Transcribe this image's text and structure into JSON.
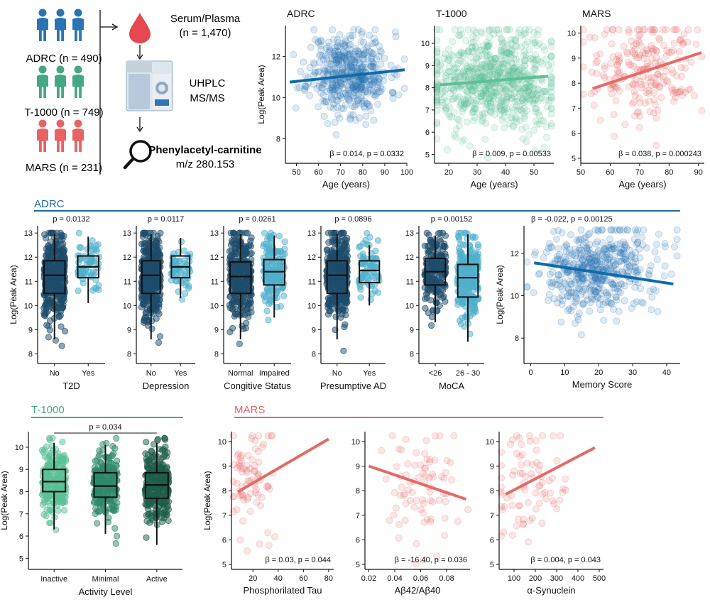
{
  "workflow": {
    "cohorts": [
      {
        "label": "ADRC (n = 490)",
        "color": "#2b74b3"
      },
      {
        "label": "T-1000 (n = 749)",
        "color": "#44a883"
      },
      {
        "label": "MARS (n = 231)",
        "color": "#e76366"
      }
    ],
    "sample_line1": "Serum/Plasma",
    "sample_line2": "(n = 1,470)",
    "method_line1": "UHPLC",
    "method_line2": "MS/MS",
    "compound_name": "Phenylacetyl-carnitine",
    "compound_mz": "m/z 280.153"
  },
  "sections": {
    "adrc": "ADRC",
    "t1000": "T-1000",
    "mars": "MARS"
  },
  "colors": {
    "adrc": "#2b74b3",
    "adrc_line": "#0f6aa8",
    "adrc_dark": "#1e4c6b",
    "adrc_light": "#4fb0cc",
    "t1000": "#44a883",
    "t1000_light": "#5cc096",
    "t1000_mid": "#2e8a6a",
    "t1000_dark": "#1d5e4a",
    "mars": "#e76366",
    "mars_line": "#e46a66"
  },
  "chart_data": [
    {
      "id": "age_adrc",
      "type": "scatter",
      "title": "ADRC",
      "xlabel": "Age (years)",
      "ylabel": "Log(Peak Area)",
      "xlim": [
        45,
        100
      ],
      "ylim": [
        6.8,
        13.5
      ],
      "xticks": [
        50,
        60,
        70,
        80,
        90,
        100
      ],
      "yticks": [
        8,
        10,
        12
      ],
      "n": 490,
      "x_center": 74,
      "x_spread": 9,
      "y_center": 11.2,
      "y_spread": 1.0,
      "fit": {
        "x": [
          47,
          99
        ],
        "y": [
          10.75,
          11.35
        ]
      },
      "annotation": "β = 0.014, p = 0.0332"
    },
    {
      "id": "age_t1000",
      "type": "scatter",
      "title": "T-1000",
      "xlabel": "Age (years)",
      "ylabel": "",
      "xlim": [
        15,
        57
      ],
      "ylim": [
        4.6,
        10.8
      ],
      "xticks": [
        20,
        30,
        40,
        50
      ],
      "yticks": [
        5,
        6,
        7,
        8,
        9,
        10
      ],
      "n": 749,
      "x_center": 36,
      "x_spread": 11,
      "y_center": 8.3,
      "y_spread": 1.1,
      "fit": {
        "x": [
          17,
          55
        ],
        "y": [
          8.13,
          8.52
        ]
      },
      "annotation": "β = 0.009, p = 0.00533"
    },
    {
      "id": "age_mars",
      "type": "scatter",
      "title": "MARS",
      "xlabel": "Age (years)",
      "ylabel": "",
      "xlim": [
        50,
        92
      ],
      "ylim": [
        4.8,
        10.3
      ],
      "xticks": [
        50,
        60,
        70,
        80,
        90
      ],
      "yticks": [
        5,
        6,
        7,
        8,
        9,
        10
      ],
      "n": 231,
      "x_center": 72,
      "x_spread": 9,
      "y_center": 8.6,
      "y_spread": 1.0,
      "fit": {
        "x": [
          54,
          91
        ],
        "y": [
          7.78,
          9.22
        ]
      },
      "annotation": "β = 0.038, p = 0.000243"
    },
    {
      "id": "box_t2d",
      "type": "box",
      "xlabel": "T2D",
      "ylabel": "Log(Peak Area)",
      "ylim": [
        7.6,
        13.3
      ],
      "yticks": [
        8,
        9,
        10,
        11,
        12,
        13
      ],
      "categories": [
        "No",
        "Yes"
      ],
      "p_label": "p = 0.0132",
      "boxes": [
        {
          "q1": 10.5,
          "median": 11.25,
          "q3": 11.85,
          "lo": 8.6,
          "hi": 12.95,
          "n": 380,
          "spread": 1.05
        },
        {
          "q1": 11.15,
          "median": 11.6,
          "q3": 12.05,
          "lo": 10.1,
          "hi": 12.85,
          "n": 70,
          "spread": 0.65
        }
      ]
    },
    {
      "id": "box_depression",
      "type": "box",
      "xlabel": "Depression",
      "ylabel": "",
      "ylim": [
        7.6,
        13.3
      ],
      "yticks": [
        8,
        9,
        10,
        11,
        12,
        13
      ],
      "categories": [
        "No",
        "Yes"
      ],
      "p_label": "p = 0.0117",
      "boxes": [
        {
          "q1": 10.5,
          "median": 11.25,
          "q3": 11.85,
          "lo": 8.6,
          "hi": 12.95,
          "n": 400,
          "spread": 1.05
        },
        {
          "q1": 11.15,
          "median": 11.6,
          "q3": 12.05,
          "lo": 10.3,
          "hi": 12.8,
          "n": 60,
          "spread": 0.6
        }
      ]
    },
    {
      "id": "box_cognitive",
      "type": "box",
      "xlabel": "Congitive Status",
      "ylabel": "",
      "ylim": [
        7.6,
        13.3
      ],
      "yticks": [
        8,
        9,
        10,
        11,
        12,
        13
      ],
      "categories": [
        "Normal",
        "Impaired"
      ],
      "p_label": "p = 0.0261",
      "boxes": [
        {
          "q1": 10.5,
          "median": 11.2,
          "q3": 11.8,
          "lo": 8.6,
          "hi": 12.95,
          "n": 300,
          "spread": 1.05
        },
        {
          "q1": 10.85,
          "median": 11.4,
          "q3": 11.9,
          "lo": 9.5,
          "hi": 12.9,
          "n": 170,
          "spread": 0.85
        }
      ]
    },
    {
      "id": "box_presumptive_ad",
      "type": "box",
      "xlabel": "Presumptive AD",
      "ylabel": "",
      "ylim": [
        7.6,
        13.3
      ],
      "yticks": [
        8,
        9,
        10,
        11,
        12,
        13
      ],
      "categories": [
        "No",
        "Yes"
      ],
      "p_label": "p = 0.0896",
      "boxes": [
        {
          "q1": 10.5,
          "median": 11.25,
          "q3": 11.85,
          "lo": 8.6,
          "hi": 12.95,
          "n": 380,
          "spread": 1.05
        },
        {
          "q1": 10.95,
          "median": 11.45,
          "q3": 11.85,
          "lo": 10.0,
          "hi": 12.5,
          "n": 80,
          "spread": 0.75
        }
      ]
    },
    {
      "id": "box_moca",
      "type": "box",
      "xlabel": "MoCA",
      "ylabel": "",
      "ylim": [
        7.6,
        13.3
      ],
      "yticks": [
        8,
        9,
        10,
        11,
        12,
        13
      ],
      "categories": [
        "<26",
        "26 - 30"
      ],
      "p_label": "p = 0.00152",
      "boxes": [
        {
          "q1": 10.85,
          "median": 11.4,
          "q3": 11.95,
          "lo": 9.3,
          "hi": 12.9,
          "n": 200,
          "spread": 0.9
        },
        {
          "q1": 10.35,
          "median": 11.15,
          "q3": 11.7,
          "lo": 8.5,
          "hi": 12.95,
          "n": 260,
          "spread": 1.05
        }
      ]
    },
    {
      "id": "memory_adrc",
      "type": "scatter",
      "xlabel": "Memory Score",
      "ylabel": "Log(Peak Area)",
      "xlim": [
        -2,
        44
      ],
      "ylim": [
        6.8,
        13.3
      ],
      "xticks": [
        0,
        10,
        20,
        30,
        40
      ],
      "yticks": [
        8,
        10,
        12
      ],
      "n": 490,
      "x_center": 20,
      "x_spread": 8,
      "y_center": 11.2,
      "y_spread": 1.0,
      "fit": {
        "x": [
          1,
          42
        ],
        "y": [
          11.55,
          10.55
        ]
      },
      "annotation": "β =  -0.022, p = 0.00125"
    },
    {
      "id": "activity_t1000",
      "type": "box",
      "xlabel": "Activity Level",
      "ylabel": "Log(Peak Area)",
      "ylim": [
        4.5,
        10.7
      ],
      "yticks": [
        5,
        6,
        7,
        8,
        9,
        10
      ],
      "categories": [
        "Inactive",
        "Minimal",
        "Active"
      ],
      "p_label": "p = 0.034",
      "boxes": [
        {
          "q1": 8.0,
          "median": 8.45,
          "q3": 9.0,
          "lo": 6.3,
          "hi": 10.2,
          "n": 230,
          "spread": 0.9
        },
        {
          "q1": 7.75,
          "median": 8.25,
          "q3": 8.85,
          "lo": 6.1,
          "hi": 10.1,
          "n": 230,
          "spread": 0.9
        },
        {
          "q1": 7.7,
          "median": 8.3,
          "q3": 8.85,
          "lo": 5.6,
          "hi": 10.2,
          "n": 290,
          "spread": 1.0
        }
      ]
    },
    {
      "id": "mars_ptau",
      "type": "scatter",
      "xlabel": "Phosphorilated Tau",
      "ylabel": "Log(Peak Area)",
      "xlim": [
        3,
        84
      ],
      "ylim": [
        4.8,
        10.4
      ],
      "xticks": [
        20,
        40,
        60,
        80
      ],
      "yticks": [
        5,
        6,
        7,
        8,
        9,
        10
      ],
      "n": 80,
      "x_center": 18,
      "x_spread": 9,
      "y_center": 8.3,
      "y_spread": 1.2,
      "fit": {
        "x": [
          8,
          80
        ],
        "y": [
          7.95,
          10.1
        ]
      },
      "annotation": "β = 0.03, p = 0.044"
    },
    {
      "id": "mars_abeta",
      "type": "scatter",
      "xlabel": "Aβ42/Aβ40",
      "ylabel": "",
      "xlim": [
        0.017,
        0.098
      ],
      "ylim": [
        4.8,
        10.4
      ],
      "xticks": [
        0.02,
        0.04,
        0.06,
        0.08
      ],
      "yticks": [
        5,
        6,
        7,
        8,
        9,
        10
      ],
      "n": 80,
      "x_center": 0.06,
      "x_spread": 0.015,
      "y_center": 8.3,
      "y_spread": 1.2,
      "fit": {
        "x": [
          0.02,
          0.095
        ],
        "y": [
          9.0,
          7.65
        ]
      },
      "annotation": "β = -16.40, p = 0.036"
    },
    {
      "id": "mars_asyn",
      "type": "scatter",
      "xlabel": "α-Synuclein",
      "ylabel": "",
      "xlim": [
        30,
        520
      ],
      "ylim": [
        4.8,
        10.4
      ],
      "xticks": [
        100,
        200,
        300,
        400,
        500
      ],
      "yticks": [
        5,
        6,
        7,
        8,
        9,
        10
      ],
      "n": 80,
      "x_center": 150,
      "x_spread": 80,
      "y_center": 8.3,
      "y_spread": 1.2,
      "fit": {
        "x": [
          60,
          480
        ],
        "y": [
          7.85,
          9.75
        ]
      },
      "annotation": "β = 0.004, p = 0.043"
    }
  ]
}
